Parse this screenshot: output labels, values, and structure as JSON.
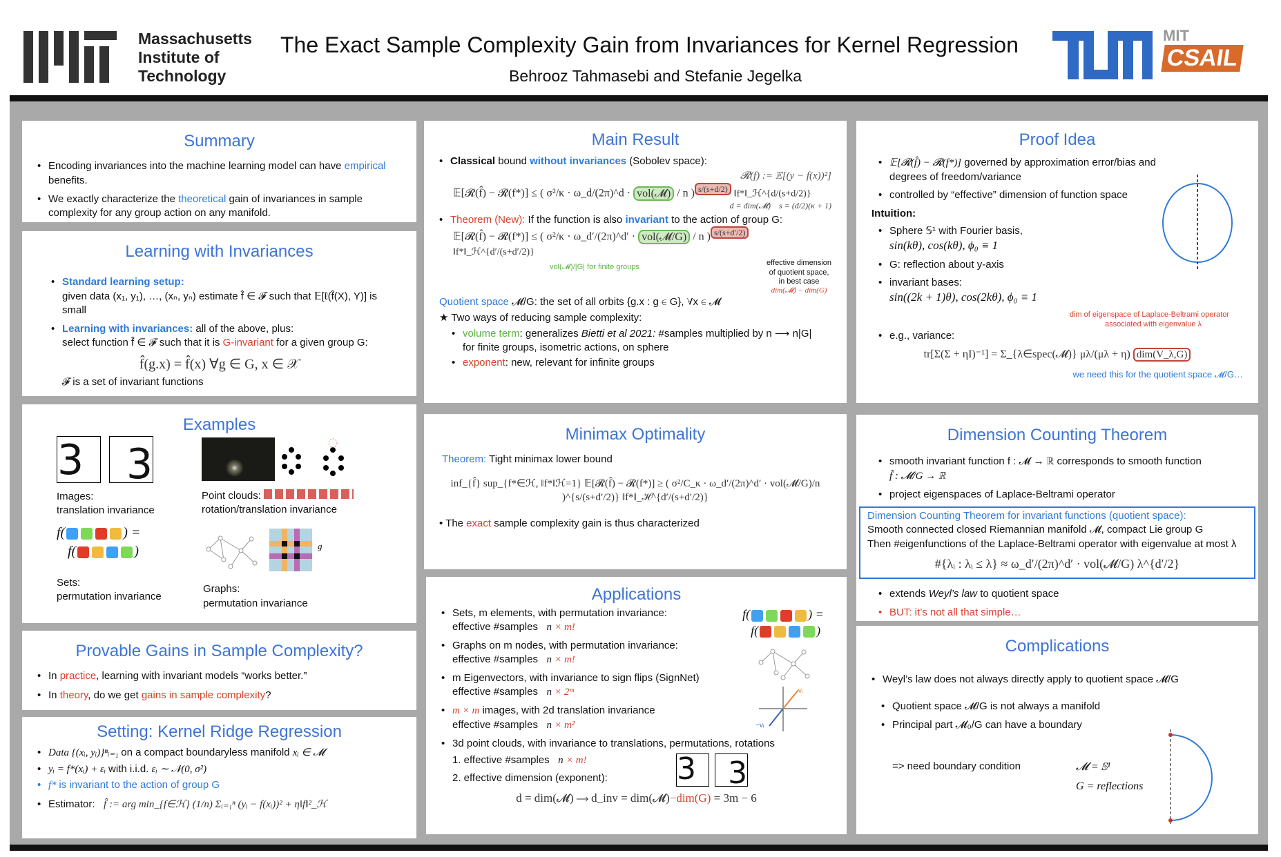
{
  "header": {
    "logo_left": "MIT",
    "logo_left_text": [
      "Massachusetts",
      "Institute of",
      "Technology"
    ],
    "title": "The Exact Sample Complexity Gain from Invariances for Kernel Regression",
    "authors": "Behrooz Tahmasebi and Stefanie Jegelka",
    "logo_right_1": "TUM",
    "logo_right_2": "MIT CSAIL"
  },
  "colors": {
    "accent": "#3d74d6",
    "red": "#d8402c",
    "green": "#5db340",
    "bg": "#a9a9a9"
  },
  "summary": {
    "title": "Summary",
    "items": [
      [
        "Encoding invariances into the machine learning model can have ",
        "empirical",
        " benefits."
      ],
      [
        "We exactly characterize the ",
        "theoretical",
        " gain of invariances in sample complexity for any group action on any manifold."
      ]
    ]
  },
  "learning": {
    "title": "Learning with Invariances",
    "b1_head": "Standard learning setup:",
    "b1_text": "given data (x₁, y₁), …, (xₙ, yₙ) estimate f̂ ∈ 𝓕 such that 𝔼[ℓ(f̂(X), Y)] is small",
    "b2_head": "Learning with invariances:",
    "b2_rest": " all of the above, plus:",
    "b2_line_a": "select function f̂ ∈ 𝓕 such that it is ",
    "b2_red": "G-invariant",
    "b2_line_b": " for a given group G:",
    "eq": "f̂(g.x) = f̂(x)     ∀g ∈ G, x ∈ 𝒳",
    "note": "𝓕 is a set of invariant functions"
  },
  "examples": {
    "title": "Examples",
    "digit": "3",
    "images_label": [
      "Images:",
      "translation invariance"
    ],
    "pc_label": [
      "Point clouds:",
      "rotation/translation invariance"
    ],
    "sets_label": [
      "Sets:",
      "permutation invariance"
    ],
    "graphs_label": [
      "Graphs:",
      "permutation invariance"
    ],
    "set_colors_1": [
      "#3fa0f5",
      "#7ed957",
      "#e03c28",
      "#f0bb3d"
    ],
    "set_colors_2": [
      "#e03c28",
      "#f0bb3d",
      "#3fa0f5",
      "#7ed957"
    ],
    "g": "g"
  },
  "provable": {
    "title": "Provable Gains in Sample Complexity?",
    "i1": [
      "In ",
      "practice",
      ", learning with invariant models “works better.”"
    ],
    "i2": [
      "In ",
      "theory",
      ", do we get ",
      "gains in sample complexity",
      "?"
    ]
  },
  "setting": {
    "title": "Setting: Kernel Ridge Regression",
    "i1": [
      "Data {(xᵢ, yᵢ)}ⁿᵢ₌₁ ",
      "on a compact boundaryless manifold ",
      "xᵢ ∈ 𝓜"
    ],
    "i2": [
      "yᵢ = f*(xᵢ) + εᵢ ",
      "with i.i.d. ",
      "εᵢ ∼ 𝒩(0, σ²)"
    ],
    "i3": [
      "f* ",
      "is invariant to the action of group G"
    ],
    "i4_label": "Estimator:",
    "i4_eq": "f̂ := arg min_{f∈ℋ} (1/n) Σᵢ₌₁ⁿ (yᵢ − f(xᵢ))² + η‖f‖²_ℋ"
  },
  "main": {
    "title": "Main Result",
    "c_bold": "Classical",
    "c_mid": " bound ",
    "c_blue": "without invariances",
    "c_end": " (Sobolev space):",
    "risk_def": "𝓡(f) := 𝔼[(y − f(x))²]",
    "d_def": "d = dim(𝓜)",
    "s_def": "s = (d/2)(κ + 1)",
    "eq1_lhs": "𝔼[𝓡(f̂) − 𝓡(f*)] ≤ ( σ²/κ · ω_d/(2π)^d ·",
    "eq1_vol": "vol(𝓜)",
    "eq1_n": "/ n )",
    "eq1_exp": "s/(s+d/2)",
    "eq1_tail": "‖f*‖_ℋ^{d/(s+d/2)}",
    "t_red": "Theorem (New):",
    "t_mid": " If the function is also ",
    "t_blue": "invariant",
    "t_end": " to the action of group G:",
    "eq2_lhs": "𝔼[𝓡(f̂) − 𝓡(f*)] ≤ ( σ²/κ · ω_d′/(2π)^d′ ·",
    "eq2_vol": "vol(𝓜/G)",
    "eq2_n": "/ n )",
    "eq2_exp": "s/(s+d′/2)",
    "eq2_tail": "‖f*‖_ℋ^{d′/(s+d′/2)}",
    "green_note": "vol(𝓜)/|G|  for finite groups",
    "red_note": [
      "effective dimension",
      "of quotient space,",
      "in best case"
    ],
    "red_note_eq": "dim(𝓜) − dim(G)",
    "q_blue": "Quotient space",
    "q_rest": " 𝓜/G: the set of all orbits {g.x : g ∈ G}, ∀x ∈ 𝓜",
    "star": "★ Two ways of reducing sample complexity:",
    "w1": [
      "volume term",
      ": generalizes ",
      "Bietti et al 2021:",
      " #samples multiplied by n ⟶ n|G|"
    ],
    "w1b": "for finite groups, isometric actions, on sphere",
    "w2": [
      "exponent",
      ": new, relevant for infinite groups"
    ]
  },
  "minimax": {
    "title": "Minimax Optimality",
    "th_blue": "Theorem:",
    "th_rest": " Tight minimax lower bound",
    "eq": "inf_{f̂} sup_{f*∈ℋ, ‖f*‖ℋ=1} 𝔼[𝓡(f̂) − 𝓡(f*)] ≥ ( σ²/C_κ · ω_d′/(2π)^d′ · vol(𝓜/G)/n )^{s/(s+d′/2)} ‖f*‖_ℋ^{d′/(s+d′/2)}",
    "note": [
      "The ",
      "exact",
      " sample complexity gain is thus characterized"
    ]
  },
  "applications": {
    "title": "Applications",
    "items": [
      {
        "l1": "Sets, m elements, with permutation invariance:",
        "l2": "effective #samples",
        "n": "n",
        "f": "× m!"
      },
      {
        "l1": "Graphs on m nodes, with permutation invariance:",
        "l2": "effective #samples",
        "n": "n",
        "f": "× m!"
      },
      {
        "l1": "m Eigenvectors, with invariance to sign flips (SignNet)",
        "l2": "effective #samples",
        "n": "n",
        "f": "× 2ᵐ"
      },
      {
        "l1red": "m × m",
        "l1": " images, with 2d translation invariance",
        "l2": "effective #samples",
        "n": "n",
        "f": "× m²"
      }
    ],
    "pc": "3d point clouds, with invariance to translations, permutations, rotations",
    "s1": "1. effective #samples",
    "s1n": "n",
    "s1f": "× m!",
    "s2": "2. effective dimension (exponent):",
    "deq_a": "d = dim(𝓜)   ⟶   d_inv = dim(𝓜)",
    "deq_red": "−dim(G)",
    "deq_b": "= 3m − 6",
    "vi": "vᵢ",
    "mvi": "−vᵢ",
    "digit": "3"
  },
  "proof": {
    "title": "Proof Idea",
    "i1_eq": "𝔼[𝓡(f̂) − 𝓡(f*)]",
    "i1": " governed by approximation error/bias and degrees of freedom/variance",
    "i2": "controlled by “effective” dimension of function space",
    "intuition": "Intuition:",
    "i3": "Sphere 𝕊¹ with Fourier basis,",
    "i3b": "sin(kθ), cos(kθ), ϕ₀ ≡ 1",
    "i4": "G: reflection about y-axis",
    "i5": "invariant bases:",
    "i5b": "sin((2k + 1)θ), cos(2kθ), ϕ₀ ≡ 1",
    "red_note": [
      "dim of eigenspace of Laplace-Beltrami operator",
      "associated with eigenvalue λ"
    ],
    "i6": "e.g., variance:",
    "var_eq": "tr[Σ(Σ + ηI)⁻¹] = Σ_{λ∈spec(𝓜)} μλ/(μλ + η)",
    "var_box": "dim(V_λ,G)",
    "blue_note": "we need this for the quotient space 𝓜/G…"
  },
  "dimension": {
    "title": "Dimension Counting Theorem",
    "i1": "smooth invariant function  f : 𝓜 → ℝ  corresponds to smooth function",
    "i1b": "f̃ : 𝓜/G → ℝ",
    "i2": "project eigenspaces of Laplace-Beltrami operator",
    "box_title": "Dimension Counting Theorem for invariant functions (quotient space):",
    "box_l1": "Smooth connected closed Riemannian manifold 𝓜, compact Lie group G",
    "box_l2": "Then #eigenfunctions of the Laplace-Beltrami operator with eigenvalue at most λ",
    "box_eq": "#{λᵢ : λᵢ ≤ λ} ≈ ω_d′/(2π)^d′ · vol(𝓜/G) λ^{d′/2}",
    "i3": [
      "extends ",
      "Weyl’s law",
      " to quotient space"
    ],
    "i4": "BUT: it’s not all that simple…"
  },
  "complications": {
    "title": "Complications",
    "i1": "Weyl’s law does not always directly apply to quotient space  𝓜/G",
    "i2": "Quotient space  𝓜/G  is not always a manifold",
    "i3": "Principal part  𝓜₀/G  can have a boundary",
    "concl": "=> need boundary condition",
    "eq1": "𝓜 = 𝕊¹",
    "eq2": "G = reflections"
  }
}
